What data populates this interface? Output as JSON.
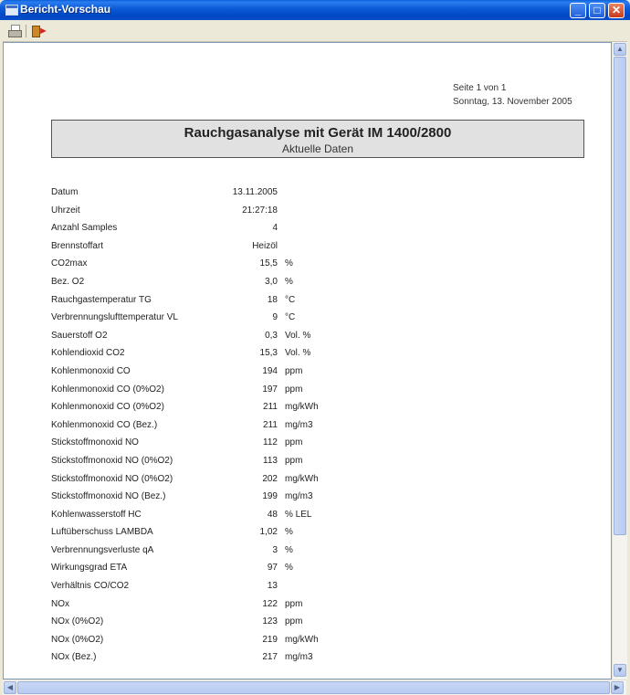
{
  "window": {
    "title": "Bericht-Vorschau",
    "controls": {
      "minimize": "_",
      "maximize": "□",
      "close": "✕"
    }
  },
  "toolbar": {
    "items": [
      {
        "icon": "printer-icon",
        "label": "Drucken"
      },
      {
        "icon": "exit-icon",
        "label": "Beenden"
      }
    ]
  },
  "report": {
    "page_info": "Seite 1 von 1",
    "date_info": "Sonntag, 13. November 2005",
    "title": "Rauchgasanalyse mit Gerät IM 1400/2800",
    "subtitle": "Aktuelle Daten",
    "rows": [
      {
        "label": "Datum",
        "value": "13.11.2005",
        "unit": ""
      },
      {
        "label": "Uhrzeit",
        "value": "21:27:18",
        "unit": ""
      },
      {
        "label": "Anzahl Samples",
        "value": "4",
        "unit": ""
      },
      {
        "label": "Brennstoffart",
        "value": "Heizöl",
        "unit": ""
      },
      {
        "label": "CO2max",
        "value": "15,5",
        "unit": "%"
      },
      {
        "label": "Bez. O2",
        "value": "3,0",
        "unit": "%"
      },
      {
        "label": "Rauchgastemperatur TG",
        "value": "18",
        "unit": "°C"
      },
      {
        "label": "Verbrennungslufttemperatur VL",
        "value": "9",
        "unit": "°C"
      },
      {
        "label": "Sauerstoff O2",
        "value": "0,3",
        "unit": "Vol. %"
      },
      {
        "label": "Kohlendioxid CO2",
        "value": "15,3",
        "unit": "Vol. %"
      },
      {
        "label": "Kohlenmonoxid CO",
        "value": "194",
        "unit": "ppm"
      },
      {
        "label": "Kohlenmonoxid CO (0%O2)",
        "value": "197",
        "unit": "ppm"
      },
      {
        "label": "Kohlenmonoxid CO (0%O2)",
        "value": "211",
        "unit": "mg/kWh"
      },
      {
        "label": "Kohlenmonoxid CO (Bez.)",
        "value": "211",
        "unit": "mg/m3"
      },
      {
        "label": "Stickstoffmonoxid NO",
        "value": "112",
        "unit": "ppm"
      },
      {
        "label": "Stickstoffmonoxid NO (0%O2)",
        "value": "113",
        "unit": "ppm"
      },
      {
        "label": "Stickstoffmonoxid NO (0%O2)",
        "value": "202",
        "unit": "mg/kWh"
      },
      {
        "label": "Stickstoffmonoxid NO (Bez.)",
        "value": "199",
        "unit": "mg/m3"
      },
      {
        "label": "Kohlenwasserstoff HC",
        "value": "48",
        "unit": "% LEL"
      },
      {
        "label": "Luftüberschuss LAMBDA",
        "value": "1,02",
        "unit": "%"
      },
      {
        "label": "Verbrennungsverluste qA",
        "value": "3",
        "unit": "%"
      },
      {
        "label": "Wirkungsgrad ETA",
        "value": "97",
        "unit": "%"
      },
      {
        "label": "Verhältnis CO/CO2",
        "value": "13",
        "unit": ""
      },
      {
        "label": "NOx",
        "value": "122",
        "unit": "ppm"
      },
      {
        "label": "NOx (0%O2)",
        "value": "123",
        "unit": "ppm"
      },
      {
        "label": "NOx (0%O2)",
        "value": "219",
        "unit": "mg/kWh"
      },
      {
        "label": "NOx (Bez.)",
        "value": "217",
        "unit": "mg/m3"
      }
    ]
  },
  "scrollbars": {
    "vertical": {
      "up": "▲",
      "down": "▼"
    },
    "horizontal": {
      "left": "◀",
      "right": "▶"
    }
  }
}
